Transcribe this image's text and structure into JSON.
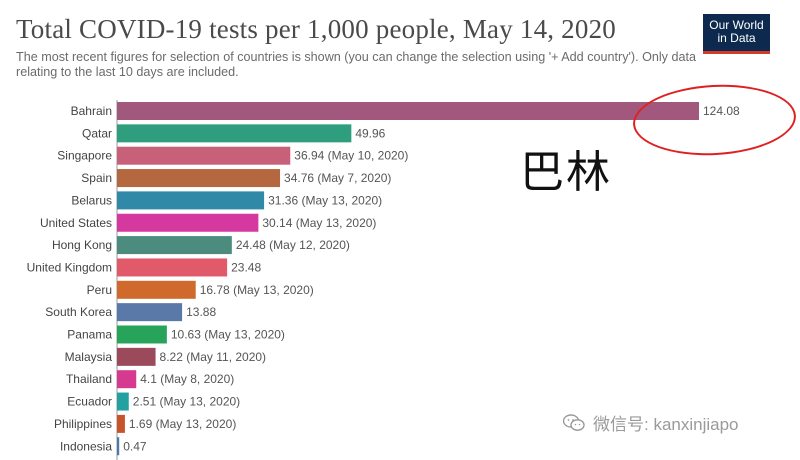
{
  "header": {
    "title": "Total COVID-19 tests per 1,000 people, May 14, 2020",
    "subtitle": "The most recent figures for selection of countries is shown (you can change the selection using '+ Add country'). Only data relating to the last 10 days are included."
  },
  "logo": {
    "line1": "Our World",
    "line2": "in Data"
  },
  "overlay": {
    "text": "巴林"
  },
  "watermark": {
    "text": "微信号: kanxinjiapo",
    "icon": "wechat-icon"
  },
  "chart_data": {
    "type": "bar",
    "orientation": "horizontal",
    "title": "Total COVID-19 tests per 1,000 people, May 14, 2020",
    "xlim": [
      0,
      124.08
    ],
    "grid": false,
    "categories": [
      "Bahrain",
      "Qatar",
      "Singapore",
      "Spain",
      "Belarus",
      "United States",
      "Hong Kong",
      "United Kingdom",
      "Peru",
      "South Korea",
      "Panama",
      "Malaysia",
      "Thailand",
      "Ecuador",
      "Philippines",
      "Indonesia"
    ],
    "values": [
      124.08,
      49.96,
      36.94,
      34.76,
      31.36,
      30.14,
      24.48,
      23.48,
      16.78,
      13.88,
      10.63,
      8.22,
      4.1,
      2.51,
      1.69,
      0.47
    ],
    "labels": [
      "124.08",
      "49.96",
      "36.94 (May 10, 2020)",
      "34.76 (May 7, 2020)",
      "31.36 (May 13, 2020)",
      "30.14 (May 13, 2020)",
      "24.48 (May 12, 2020)",
      "23.48",
      "16.78 (May 13, 2020)",
      "13.88",
      "10.63 (May 13, 2020)",
      "8.22 (May 11, 2020)",
      "4.1 (May 8, 2020)",
      "2.51 (May 13, 2020)",
      "1.69 (May 13, 2020)",
      "0.47"
    ],
    "colors": [
      "#a2587c",
      "#2e9e7e",
      "#c8607a",
      "#b5683f",
      "#3189a8",
      "#d5389e",
      "#4b8c7e",
      "#e05a6a",
      "#cf6a2c",
      "#5a78a8",
      "#27a45a",
      "#9a4a5a",
      "#d53a90",
      "#23a0a0",
      "#c8542e",
      "#4a7aa8"
    ]
  }
}
